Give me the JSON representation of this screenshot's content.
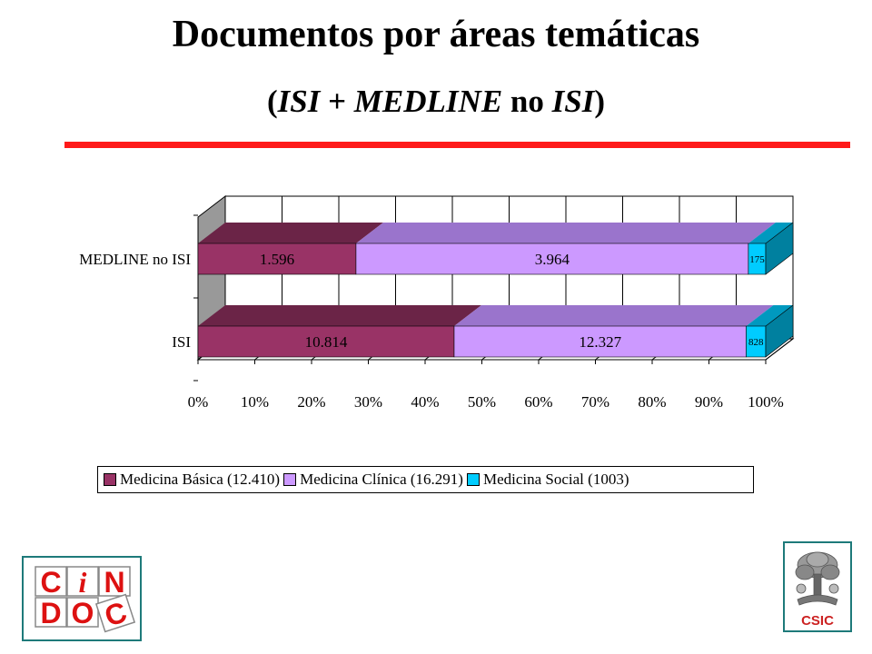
{
  "header": {
    "title": "Documentos por áreas temáticas",
    "subtitle_parts": [
      "(",
      "ISI",
      " + ",
      "MEDLINE",
      " no ",
      "ISI",
      ")"
    ]
  },
  "chart_data": {
    "type": "bar",
    "orientation": "horizontal",
    "stacked": "100%",
    "categories": [
      "MEDLINE no ISI",
      "ISI"
    ],
    "series": [
      {
        "name": "Medicina Básica (12.410)",
        "color": "#993366",
        "top_color": "#6b2447",
        "side_color": "#6b2447",
        "values": [
          1596,
          10814
        ],
        "labels": [
          "1.596",
          "10.814"
        ]
      },
      {
        "name": "Medicina Clínica (16.291)",
        "color": "#cc99ff",
        "top_color": "#9a74cc",
        "side_color": "#9a74cc",
        "values": [
          3964,
          12327
        ],
        "labels": [
          "3.964",
          "12.327"
        ]
      },
      {
        "name": "Medicina Social (1003)",
        "color": "#00ccff",
        "top_color": "#0099bf",
        "side_color": "#00809f",
        "values": [
          175,
          828
        ],
        "labels": [
          "175",
          "828"
        ]
      }
    ],
    "x_ticks": [
      "0%",
      "10%",
      "20%",
      "30%",
      "40%",
      "50%",
      "60%",
      "70%",
      "80%",
      "90%",
      "100%"
    ],
    "xlim": [
      0,
      100
    ],
    "grid": true,
    "legend_position": "bottom"
  },
  "logos": {
    "cindoc": {
      "letters": [
        "C",
        "i",
        "N",
        "D",
        "O",
        "C"
      ],
      "color": "#dd1111",
      "border": "#1e7a7a"
    },
    "csic": {
      "text": "CSIC",
      "color": "#cc2222"
    }
  }
}
